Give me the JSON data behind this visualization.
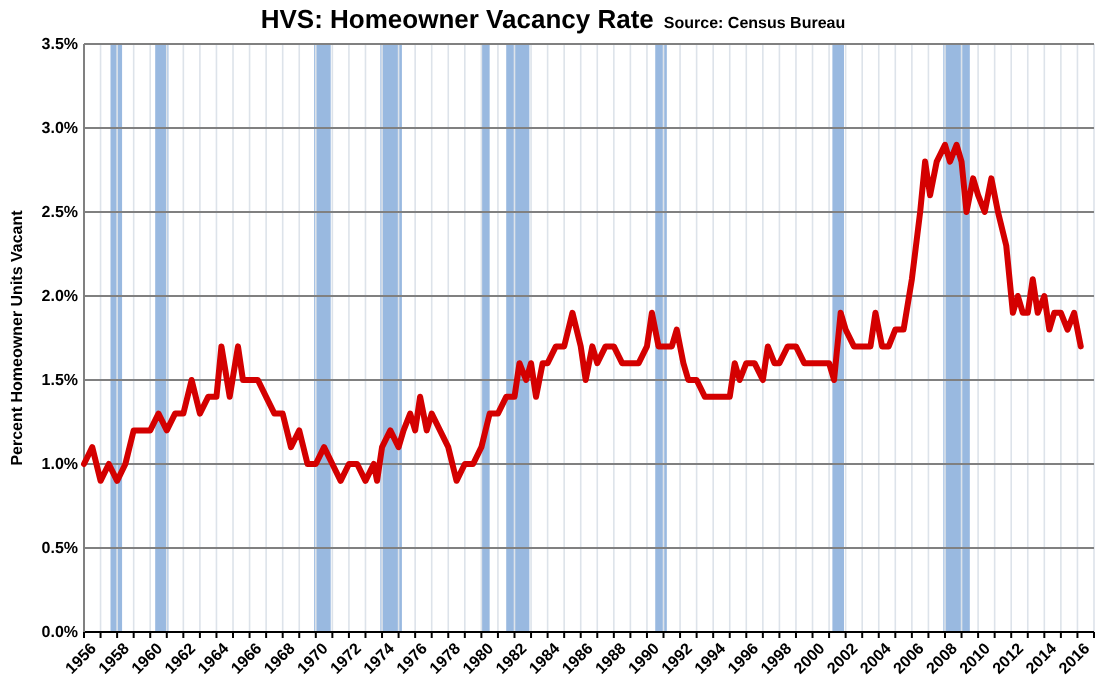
{
  "chart_data": {
    "type": "line",
    "title": "HVS: Homeowner Vacancy Rate",
    "subtitle": "Source: Census Bureau",
    "ylabel": "Percent Homeowner Units Vacant",
    "x": [
      1956,
      1956.5,
      1957,
      1957.5,
      1958,
      1958.5,
      1959,
      1959.5,
      1960,
      1960.5,
      1961,
      1961.5,
      1962,
      1962.5,
      1963,
      1963.5,
      1964,
      1964.3,
      1964.8,
      1965.3,
      1965.6,
      1966,
      1966.5,
      1967,
      1967.5,
      1968,
      1968.5,
      1969,
      1969.5,
      1970,
      1970.5,
      1971,
      1971.5,
      1972,
      1972.5,
      1973,
      1973.5,
      1973.7,
      1974,
      1974.5,
      1975,
      1975.3,
      1975.7,
      1976,
      1976.3,
      1976.7,
      1977,
      1977.5,
      1978,
      1978.5,
      1979,
      1979.5,
      1980,
      1980.5,
      1981,
      1981.5,
      1982,
      1982.3,
      1982.7,
      1983,
      1983.3,
      1983.7,
      1984,
      1984.5,
      1985,
      1985.5,
      1986,
      1986.3,
      1986.7,
      1987,
      1987.5,
      1988,
      1988.5,
      1989,
      1989.5,
      1990,
      1990.3,
      1990.7,
      1991,
      1991.5,
      1991.8,
      1992.2,
      1992.5,
      1993,
      1993.5,
      1994,
      1994.5,
      1995,
      1995.3,
      1995.6,
      1996,
      1996.5,
      1997,
      1997.3,
      1997.7,
      1998,
      1998.5,
      1999,
      1999.5,
      2000,
      2000.5,
      2001,
      2001.3,
      2001.7,
      2002,
      2002.5,
      2003,
      2003.5,
      2003.8,
      2004.2,
      2004.6,
      2005,
      2005.5,
      2006,
      2006.5,
      2006.8,
      2007.1,
      2007.5,
      2008,
      2008.3,
      2008.7,
      2009,
      2009.3,
      2009.7,
      2010,
      2010.4,
      2010.8,
      2011.2,
      2011.7,
      2012.1,
      2012.4,
      2012.7,
      2013,
      2013.3,
      2013.6,
      2014,
      2014.3,
      2014.6,
      2015,
      2015.4,
      2015.8,
      2016.2
    ],
    "series": [
      {
        "color": "#d40000",
        "values": [
          1.0,
          1.1,
          0.9,
          1.0,
          0.9,
          1.0,
          1.2,
          1.2,
          1.2,
          1.3,
          1.2,
          1.3,
          1.3,
          1.5,
          1.3,
          1.4,
          1.4,
          1.7,
          1.4,
          1.7,
          1.5,
          1.5,
          1.5,
          1.4,
          1.3,
          1.3,
          1.1,
          1.2,
          1.0,
          1.0,
          1.1,
          1.0,
          0.9,
          1.0,
          1.0,
          0.9,
          1.0,
          0.9,
          1.1,
          1.2,
          1.1,
          1.2,
          1.3,
          1.2,
          1.4,
          1.2,
          1.3,
          1.2,
          1.1,
          0.9,
          1.0,
          1.0,
          1.1,
          1.3,
          1.3,
          1.4,
          1.4,
          1.6,
          1.5,
          1.6,
          1.4,
          1.6,
          1.6,
          1.7,
          1.7,
          1.9,
          1.7,
          1.5,
          1.7,
          1.6,
          1.7,
          1.7,
          1.6,
          1.6,
          1.6,
          1.7,
          1.9,
          1.7,
          1.7,
          1.7,
          1.8,
          1.6,
          1.5,
          1.5,
          1.4,
          1.4,
          1.4,
          1.4,
          1.6,
          1.5,
          1.6,
          1.6,
          1.5,
          1.7,
          1.6,
          1.6,
          1.7,
          1.7,
          1.6,
          1.6,
          1.6,
          1.6,
          1.5,
          1.9,
          1.8,
          1.7,
          1.7,
          1.7,
          1.9,
          1.7,
          1.7,
          1.8,
          1.8,
          2.1,
          2.5,
          2.8,
          2.6,
          2.8,
          2.9,
          2.8,
          2.9,
          2.8,
          2.5,
          2.7,
          2.6,
          2.5,
          2.7,
          2.5,
          2.3,
          1.9,
          2.0,
          1.9,
          1.9,
          2.1,
          1.9,
          2.0,
          1.8,
          1.9,
          1.9,
          1.8,
          1.9,
          1.7
        ]
      }
    ],
    "xlim": [
      1956,
      2017
    ],
    "xticks": [
      1956,
      {
        "value": 1957,
        "label": null
      },
      1958,
      {
        "value": 1959,
        "label": null
      },
      1960,
      {
        "value": 1961,
        "label": null
      },
      1962,
      {
        "value": 1963,
        "label": null
      },
      1964,
      {
        "value": 1965,
        "label": null
      },
      1966,
      {
        "value": 1967,
        "label": null
      },
      1968,
      {
        "value": 1969,
        "label": null
      },
      1970,
      {
        "value": 1971,
        "label": null
      },
      1972,
      {
        "value": 1973,
        "label": null
      },
      1974,
      {
        "value": 1975,
        "label": null
      },
      1976,
      {
        "value": 1977,
        "label": null
      },
      1978,
      {
        "value": 1979,
        "label": null
      },
      1980,
      {
        "value": 1981,
        "label": null
      },
      1982,
      {
        "value": 1983,
        "label": null
      },
      1984,
      {
        "value": 1985,
        "label": null
      },
      1986,
      {
        "value": 1987,
        "label": null
      },
      1988,
      {
        "value": 1989,
        "label": null
      },
      1990,
      {
        "value": 1991,
        "label": null
      },
      1992,
      {
        "value": 1993,
        "label": null
      },
      1994,
      {
        "value": 1995,
        "label": null
      },
      1996,
      {
        "value": 1997,
        "label": null
      },
      1998,
      {
        "value": 1999,
        "label": null
      },
      2000,
      {
        "value": 2001,
        "label": null
      },
      2002,
      {
        "value": 2003,
        "label": null
      },
      2004,
      {
        "value": 2005,
        "label": null
      },
      2006,
      {
        "value": 2007,
        "label": null
      },
      2008,
      {
        "value": 2009,
        "label": null
      },
      2010,
      {
        "value": 2011,
        "label": null
      },
      2012,
      {
        "value": 2013,
        "label": null
      },
      2014,
      {
        "value": 2015,
        "label": null
      },
      2016,
      {
        "value": 2017,
        "label": null
      }
    ],
    "ylim": [
      0,
      3.5
    ],
    "yticks": [
      {
        "value": 0,
        "label": "0.0%"
      },
      {
        "value": 0.5,
        "label": "0.5%"
      },
      {
        "value": 1,
        "label": "1.0%"
      },
      {
        "value": 1.5,
        "label": "1.5%"
      },
      {
        "value": 2,
        "label": "2.0%"
      },
      {
        "value": 2.5,
        "label": "2.5%"
      },
      {
        "value": 3,
        "label": "3.0%"
      },
      {
        "value": 3.5,
        "label": "3.5%"
      }
    ],
    "bands": [
      {
        "axis": "x",
        "from": 1957.6,
        "to": 1958.3,
        "color": "#99b9e0"
      },
      {
        "axis": "x",
        "from": 1960.3,
        "to": 1961.1,
        "color": "#99b9e0"
      },
      {
        "axis": "x",
        "from": 1969.9,
        "to": 1970.9,
        "color": "#99b9e0"
      },
      {
        "axis": "x",
        "from": 1973.9,
        "to": 1975.2,
        "color": "#99b9e0"
      },
      {
        "axis": "x",
        "from": 1980.0,
        "to": 1980.5,
        "color": "#99b9e0"
      },
      {
        "axis": "x",
        "from": 1981.5,
        "to": 1982.9,
        "color": "#99b9e0"
      },
      {
        "axis": "x",
        "from": 1990.5,
        "to": 1991.2,
        "color": "#99b9e0"
      },
      {
        "axis": "x",
        "from": 2001.2,
        "to": 2001.9,
        "color": "#99b9e0"
      },
      {
        "axis": "x",
        "from": 2007.9,
        "to": 2009.5,
        "color": "#99b9e0"
      }
    ],
    "grid": true,
    "line_style": "solid"
  }
}
